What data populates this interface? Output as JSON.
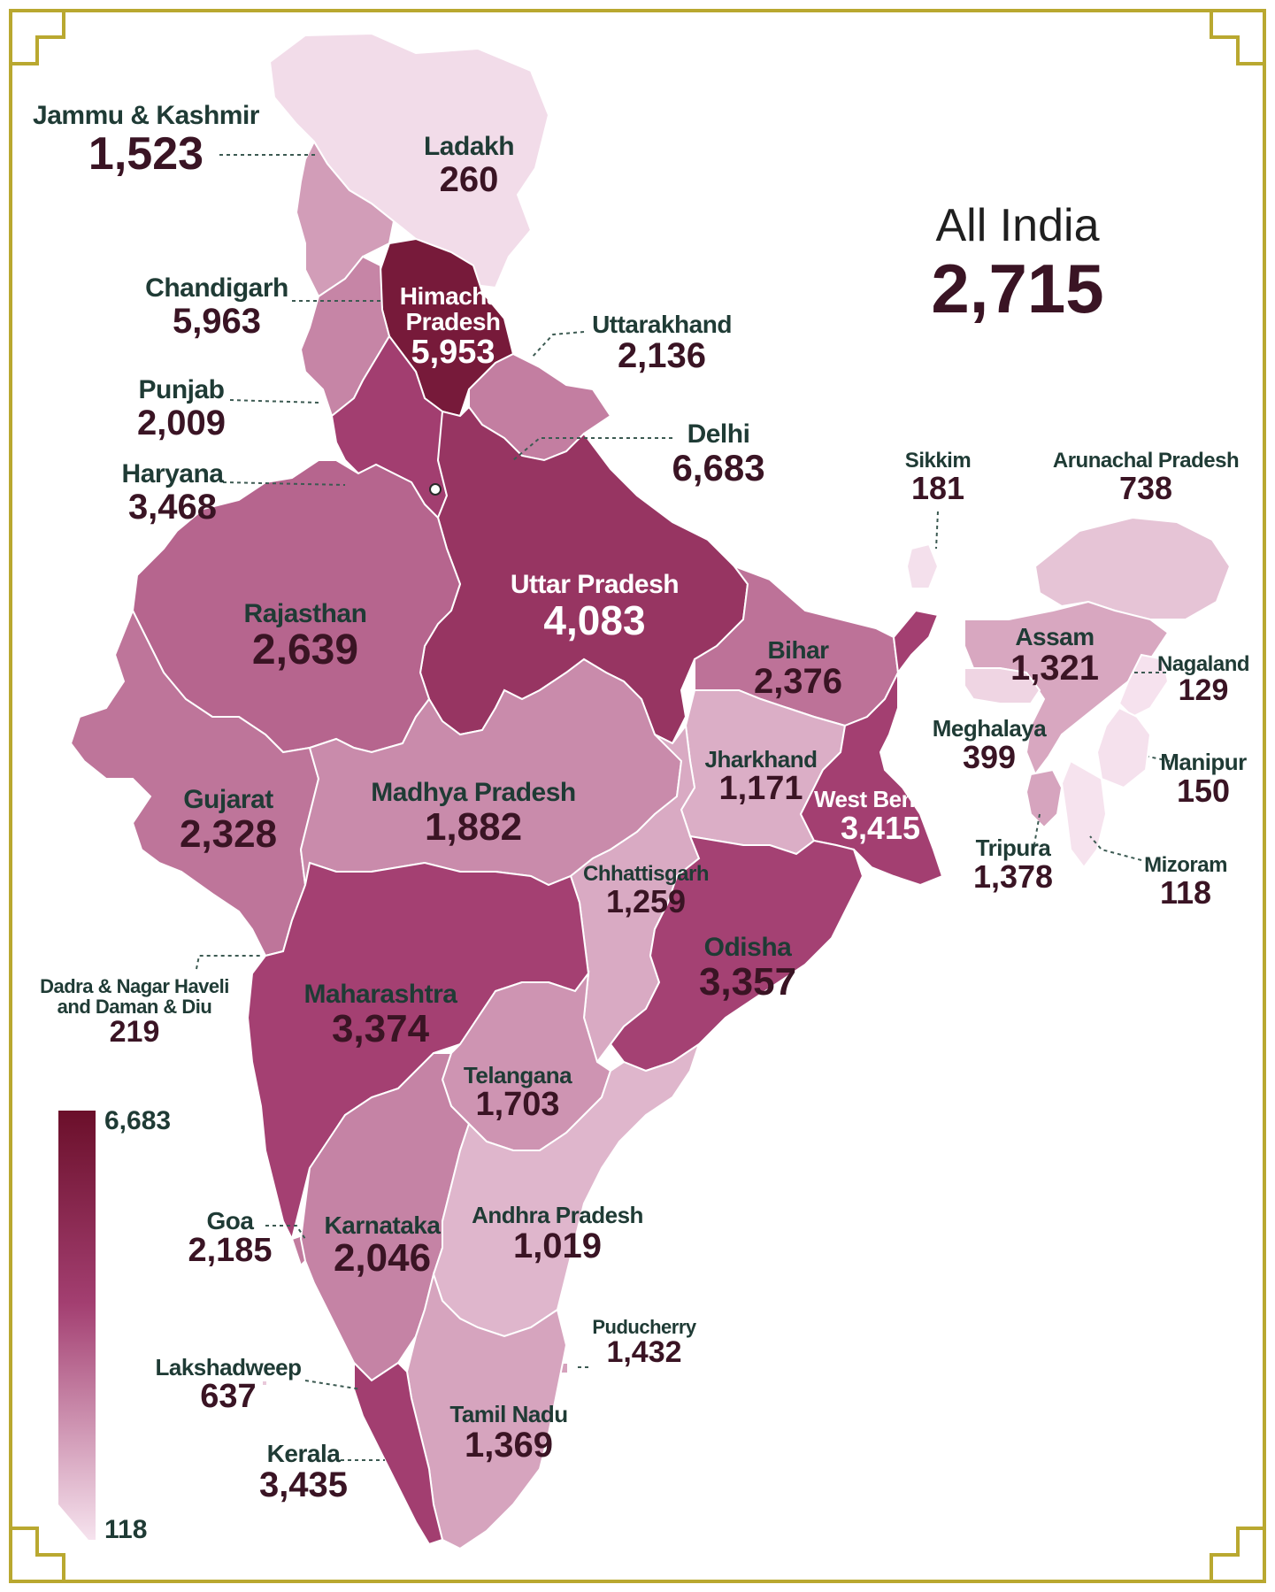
{
  "summary": {
    "label": "All India",
    "value": "2,715"
  },
  "legend": {
    "max_label": "6,683",
    "min_label": "118",
    "max_value": 6683,
    "min_value": 118,
    "color_high": "#6b0f2a",
    "color_low": "#f6e3ee"
  },
  "frame_color": "#b9a830",
  "regions": [
    {
      "id": "jk",
      "name": "Jammu & Kashmir",
      "value_label": "1,523",
      "value": 1523
    },
    {
      "id": "ladakh",
      "name": "Ladakh",
      "value_label": "260",
      "value": 260
    },
    {
      "id": "hp",
      "name": "Himachal Pradesh",
      "value_label": "5,953",
      "value": 5953
    },
    {
      "id": "chandigarh",
      "name": "Chandigarh",
      "value_label": "5,963",
      "value": 5963
    },
    {
      "id": "uk",
      "name": "Uttarakhand",
      "value_label": "2,136",
      "value": 2136
    },
    {
      "id": "punjab",
      "name": "Punjab",
      "value_label": "2,009",
      "value": 2009
    },
    {
      "id": "delhi",
      "name": "Delhi",
      "value_label": "6,683",
      "value": 6683
    },
    {
      "id": "haryana",
      "name": "Haryana",
      "value_label": "3,468",
      "value": 3468
    },
    {
      "id": "sikkim",
      "name": "Sikkim",
      "value_label": "181",
      "value": 181
    },
    {
      "id": "arunachal",
      "name": "Arunachal Pradesh",
      "value_label": "738",
      "value": 738
    },
    {
      "id": "up",
      "name": "Uttar Pradesh",
      "value_label": "4,083",
      "value": 4083
    },
    {
      "id": "rajasthan",
      "name": "Rajasthan",
      "value_label": "2,639",
      "value": 2639
    },
    {
      "id": "bihar",
      "name": "Bihar",
      "value_label": "2,376",
      "value": 2376
    },
    {
      "id": "assam",
      "name": "Assam",
      "value_label": "1,321",
      "value": 1321
    },
    {
      "id": "nagaland",
      "name": "Nagaland",
      "value_label": "129",
      "value": 129
    },
    {
      "id": "meghalaya",
      "name": "Meghalaya",
      "value_label": "399",
      "value": 399
    },
    {
      "id": "manipur",
      "name": "Manipur",
      "value_label": "150",
      "value": 150
    },
    {
      "id": "jharkhand",
      "name": "Jharkhand",
      "value_label": "1,171",
      "value": 1171
    },
    {
      "id": "wb",
      "name": "West Bengal",
      "value_label": "3,415",
      "value": 3415
    },
    {
      "id": "gujarat",
      "name": "Gujarat",
      "value_label": "2,328",
      "value": 2328
    },
    {
      "id": "mp",
      "name": "Madhya Pradesh",
      "value_label": "1,882",
      "value": 1882
    },
    {
      "id": "tripura",
      "name": "Tripura",
      "value_label": "1,378",
      "value": 1378
    },
    {
      "id": "mizoram",
      "name": "Mizoram",
      "value_label": "118",
      "value": 118
    },
    {
      "id": "chhattisgarh",
      "name": "Chhattisgarh",
      "value_label": "1,259",
      "value": 1259
    },
    {
      "id": "odisha",
      "name": "Odisha",
      "value_label": "3,357",
      "value": 3357
    },
    {
      "id": "dnhdd",
      "name": "Dadra & Nagar Haveli and Daman & Diu",
      "value_label": "219",
      "value": 219
    },
    {
      "id": "maharashtra",
      "name": "Maharashtra",
      "value_label": "3,374",
      "value": 3374
    },
    {
      "id": "telangana",
      "name": "Telangana",
      "value_label": "1,703",
      "value": 1703
    },
    {
      "id": "goa",
      "name": "Goa",
      "value_label": "2,185",
      "value": 2185
    },
    {
      "id": "karnataka",
      "name": "Karnataka",
      "value_label": "2,046",
      "value": 2046
    },
    {
      "id": "ap",
      "name": "Andhra Pradesh",
      "value_label": "1,019",
      "value": 1019
    },
    {
      "id": "puducherry",
      "name": "Puducherry",
      "value_label": "1,432",
      "value": 1432
    },
    {
      "id": "lakshadweep",
      "name": "Lakshadweep",
      "value_label": "637",
      "value": 637
    },
    {
      "id": "tn",
      "name": "Tamil Nadu",
      "value_label": "1,369",
      "value": 1369
    },
    {
      "id": "kerala",
      "name": "Kerala",
      "value_label": "3,435",
      "value": 3435
    }
  ]
}
